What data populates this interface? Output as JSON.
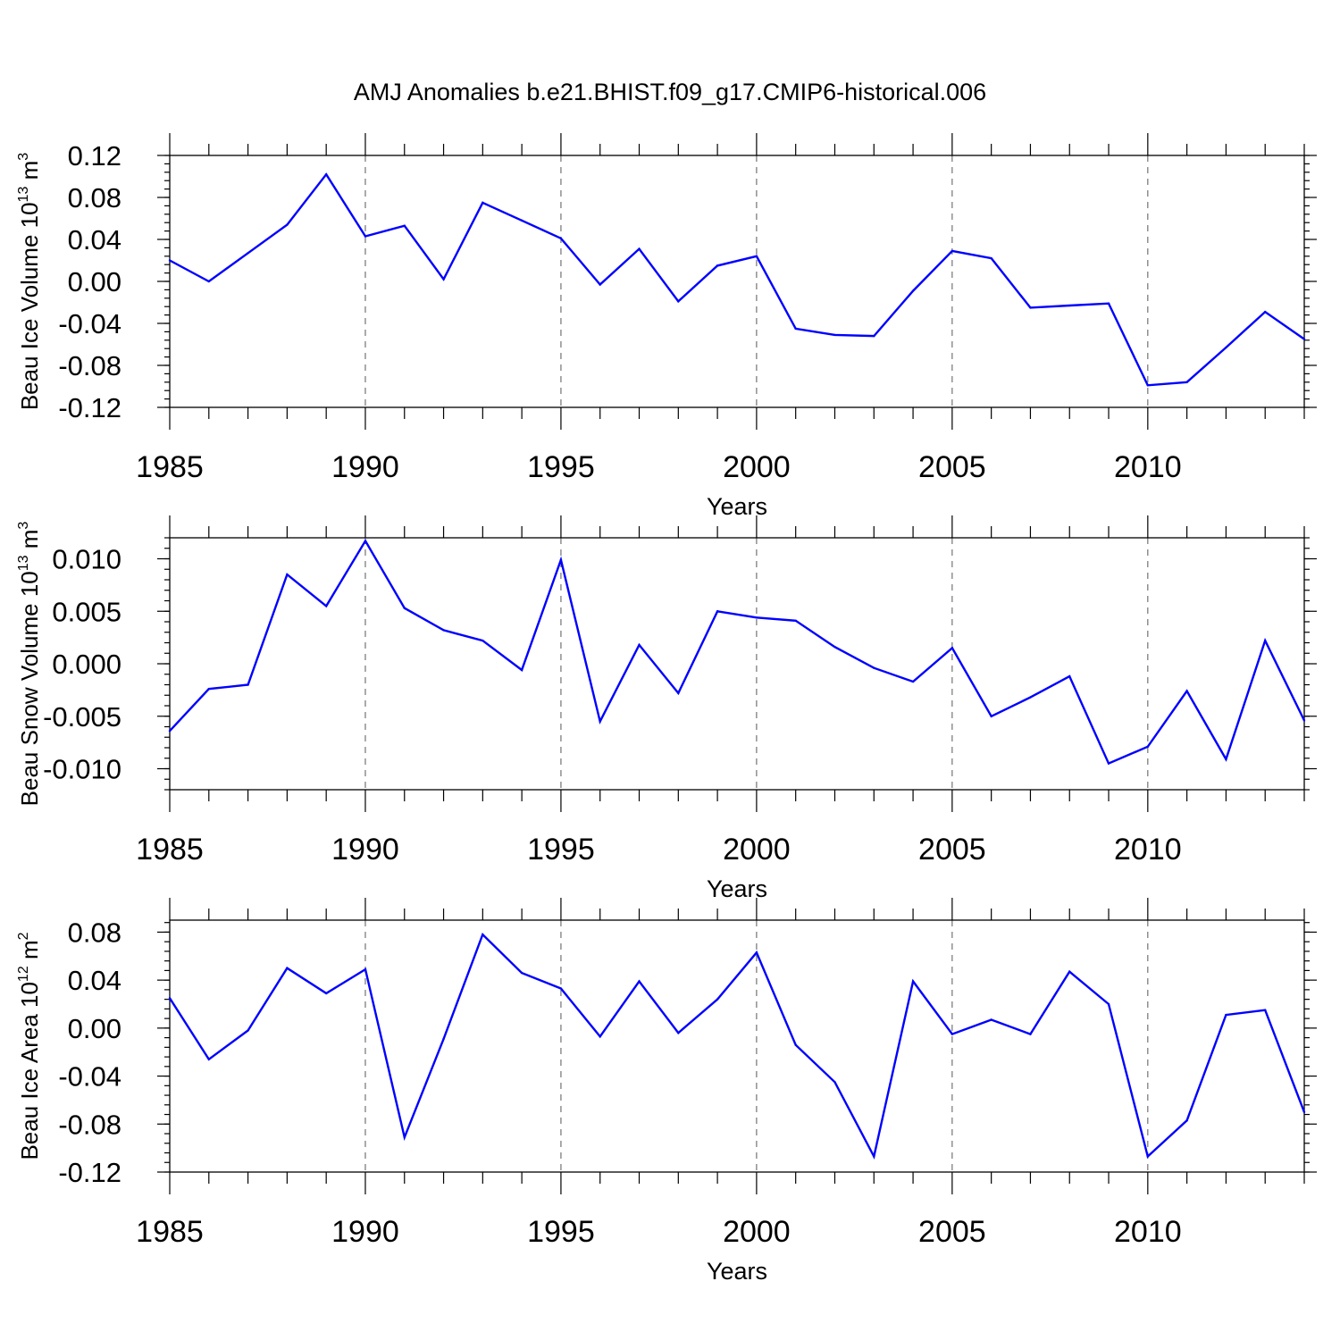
{
  "chart_data": {
    "type": "line",
    "title": "AMJ Anomalies b.e21.BHIST.f09_g17.CMIP6-historical.006",
    "x": [
      1985,
      1986,
      1987,
      1988,
      1989,
      1990,
      1991,
      1992,
      1993,
      1994,
      1995,
      1996,
      1997,
      1998,
      1999,
      2000,
      2001,
      2002,
      2003,
      2004,
      2005,
      2006,
      2007,
      2008,
      2009,
      2010,
      2011,
      2012,
      2013,
      2014
    ],
    "xlim": [
      1985,
      2014
    ],
    "xticks": [
      "1985",
      "1990",
      "1995",
      "2000",
      "2005",
      "2010"
    ],
    "grid_x": [
      1990,
      1995,
      2000,
      2005,
      2010
    ],
    "color": "#0000ff",
    "panels": [
      {
        "name": "Beau Ice Volume",
        "xlabel": "Years",
        "ylabel": "Beau Ice Volume 10",
        "ylabel_exp": "13",
        "ylabel_unit": " m",
        "ylabel_unit_exp": "3",
        "ylim": [
          -0.12,
          0.12
        ],
        "yticks": [
          "0.12",
          "0.08",
          "0.04",
          "0.00",
          "-0.04",
          "-0.08",
          "-0.12"
        ],
        "ytick_values": [
          0.12,
          0.08,
          0.04,
          0.0,
          -0.04,
          -0.08,
          -0.12
        ],
        "values": [
          0.02,
          0.0,
          0.027,
          0.054,
          0.102,
          0.043,
          0.053,
          0.002,
          0.075,
          0.058,
          0.041,
          -0.003,
          0.031,
          -0.019,
          0.015,
          0.024,
          -0.045,
          -0.051,
          -0.052,
          -0.009,
          0.029,
          0.022,
          -0.025,
          -0.023,
          -0.021,
          -0.099,
          -0.096,
          -0.063,
          -0.029,
          -0.055
        ]
      },
      {
        "name": "Beau Snow Volume",
        "xlabel": "Years",
        "ylabel": "Beau Snow Volume 10",
        "ylabel_exp": "13",
        "ylabel_unit": " m",
        "ylabel_unit_exp": "3",
        "ylim": [
          -0.012,
          0.012
        ],
        "yticks": [
          "0.010",
          "0.005",
          "0.000",
          "-0.005",
          "-0.010"
        ],
        "ytick_values": [
          0.01,
          0.005,
          0.0,
          -0.005,
          -0.01
        ],
        "values": [
          -0.0064,
          -0.0024,
          -0.002,
          0.0085,
          0.0055,
          0.0117,
          0.0053,
          0.0032,
          0.0022,
          -0.0006,
          0.0099,
          -0.0055,
          0.0018,
          -0.0028,
          0.005,
          0.0044,
          0.0041,
          0.0016,
          -0.0004,
          -0.0017,
          0.0015,
          -0.005,
          -0.0032,
          -0.0012,
          -0.0095,
          -0.0079,
          -0.0026,
          -0.0091,
          0.0022,
          -0.0054
        ]
      },
      {
        "name": "Beau Ice Area",
        "xlabel": "Years",
        "ylabel": "Beau Ice Area 10",
        "ylabel_exp": "12",
        "ylabel_unit": " m",
        "ylabel_unit_exp": "2",
        "ylim": [
          -0.12,
          0.09
        ],
        "yticks": [
          "0.08",
          "0.04",
          "0.00",
          "-0.04",
          "-0.08",
          "-0.12"
        ],
        "ytick_values": [
          0.08,
          0.04,
          0.0,
          -0.04,
          -0.08,
          -0.12
        ],
        "values": [
          0.025,
          -0.026,
          -0.002,
          0.05,
          0.029,
          0.049,
          -0.091,
          -0.009,
          0.078,
          0.046,
          0.033,
          -0.007,
          0.039,
          -0.004,
          0.024,
          0.063,
          -0.014,
          -0.045,
          -0.107,
          0.039,
          -0.005,
          0.007,
          -0.005,
          0.047,
          0.02,
          -0.107,
          -0.077,
          0.011,
          0.015,
          -0.07
        ]
      }
    ]
  }
}
